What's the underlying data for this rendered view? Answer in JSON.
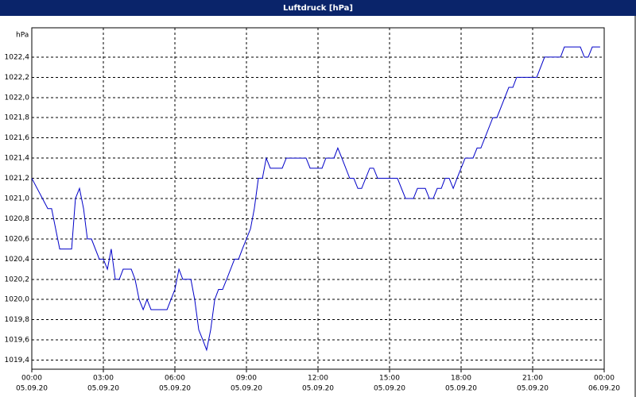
{
  "chart_data": {
    "type": "line",
    "title": "Luftdruck [hPa]",
    "ylabel": "hPa",
    "color": "#0000c8",
    "grid": true,
    "xlim": [
      0,
      24
    ],
    "xticks": [
      {
        "value": 0,
        "label": "00:00",
        "date": "05.09.20"
      },
      {
        "value": 3,
        "label": "03:00",
        "date": "05.09.20"
      },
      {
        "value": 6,
        "label": "06:00",
        "date": "05.09.20"
      },
      {
        "value": 9,
        "label": "09:00",
        "date": "05.09.20"
      },
      {
        "value": 12,
        "label": "12:00",
        "date": "05.09.20"
      },
      {
        "value": 15,
        "label": "15:00",
        "date": "05.09.20"
      },
      {
        "value": 18,
        "label": "18:00",
        "date": "05.09.20"
      },
      {
        "value": 21,
        "label": "21:00",
        "date": "05.09.20"
      },
      {
        "value": 24,
        "label": "00:00",
        "date": "06.09.20"
      }
    ],
    "ylim": [
      1019.31,
      1022.69
    ],
    "yticks": [
      {
        "value": 1019.4,
        "label": "1019,4"
      },
      {
        "value": 1019.6,
        "label": "1019,6"
      },
      {
        "value": 1019.8,
        "label": "1019,8"
      },
      {
        "value": 1020.0,
        "label": "1020,0"
      },
      {
        "value": 1020.2,
        "label": "1020,2"
      },
      {
        "value": 1020.4,
        "label": "1020,4"
      },
      {
        "value": 1020.6,
        "label": "1020,6"
      },
      {
        "value": 1020.8,
        "label": "1020,8"
      },
      {
        "value": 1021.0,
        "label": "1021,0"
      },
      {
        "value": 1021.2,
        "label": "1021,2"
      },
      {
        "value": 1021.4,
        "label": "1021,4"
      },
      {
        "value": 1021.6,
        "label": "1021,6"
      },
      {
        "value": 1021.8,
        "label": "1021,8"
      },
      {
        "value": 1022.0,
        "label": "1022,0"
      },
      {
        "value": 1022.2,
        "label": "1022,2"
      },
      {
        "value": 1022.4,
        "label": "1022,4"
      }
    ],
    "x": [
      0,
      0.67,
      0.83,
      1.17,
      1.67,
      1.83,
      2.0,
      2.17,
      2.33,
      2.5,
      2.83,
      3.0,
      3.17,
      3.33,
      3.5,
      3.67,
      3.83,
      4.17,
      4.33,
      4.5,
      4.67,
      4.83,
      5.0,
      5.67,
      6.0,
      6.17,
      6.33,
      6.67,
      6.83,
      7.0,
      7.17,
      7.33,
      7.5,
      7.67,
      7.83,
      8.0,
      8.17,
      8.5,
      8.67,
      8.83,
      9.17,
      9.33,
      9.5,
      9.67,
      9.83,
      10.0,
      10.5,
      10.67,
      11.5,
      11.67,
      12.17,
      12.33,
      12.67,
      12.83,
      13.0,
      13.33,
      13.5,
      13.67,
      13.83,
      14.17,
      14.33,
      14.5,
      15.33,
      15.67,
      16.0,
      16.17,
      16.5,
      16.67,
      16.83,
      17.0,
      17.17,
      17.33,
      17.5,
      17.67,
      17.83,
      18.17,
      18.5,
      18.67,
      18.83,
      19.33,
      19.5,
      20.0,
      20.17,
      20.33,
      21.17,
      21.5,
      22.17,
      22.33,
      23.0,
      23.17,
      23.33,
      23.5,
      23.83
    ],
    "values": [
      1021.2,
      1020.9,
      1020.9,
      1020.5,
      1020.5,
      1021.0,
      1021.1,
      1020.9,
      1020.6,
      1020.6,
      1020.4,
      1020.4,
      1020.3,
      1020.5,
      1020.2,
      1020.2,
      1020.3,
      1020.3,
      1020.2,
      1020.0,
      1019.9,
      1020.0,
      1019.9,
      1019.9,
      1020.1,
      1020.3,
      1020.2,
      1020.2,
      1020.0,
      1019.7,
      1019.6,
      1019.5,
      1019.7,
      1020.0,
      1020.1,
      1020.1,
      1020.2,
      1020.4,
      1020.4,
      1020.5,
      1020.7,
      1020.9,
      1021.2,
      1021.2,
      1021.4,
      1021.3,
      1021.3,
      1021.4,
      1021.4,
      1021.3,
      1021.3,
      1021.4,
      1021.4,
      1021.5,
      1021.4,
      1021.2,
      1021.2,
      1021.1,
      1021.1,
      1021.3,
      1021.3,
      1021.2,
      1021.2,
      1021.0,
      1021.0,
      1021.1,
      1021.1,
      1021.0,
      1021.0,
      1021.1,
      1021.1,
      1021.2,
      1021.2,
      1021.1,
      1021.2,
      1021.4,
      1021.4,
      1021.5,
      1021.5,
      1021.8,
      1021.8,
      1022.1,
      1022.1,
      1022.2,
      1022.2,
      1022.4,
      1022.4,
      1022.5,
      1022.5,
      1022.4,
      1022.4,
      1022.5,
      1022.5
    ]
  }
}
